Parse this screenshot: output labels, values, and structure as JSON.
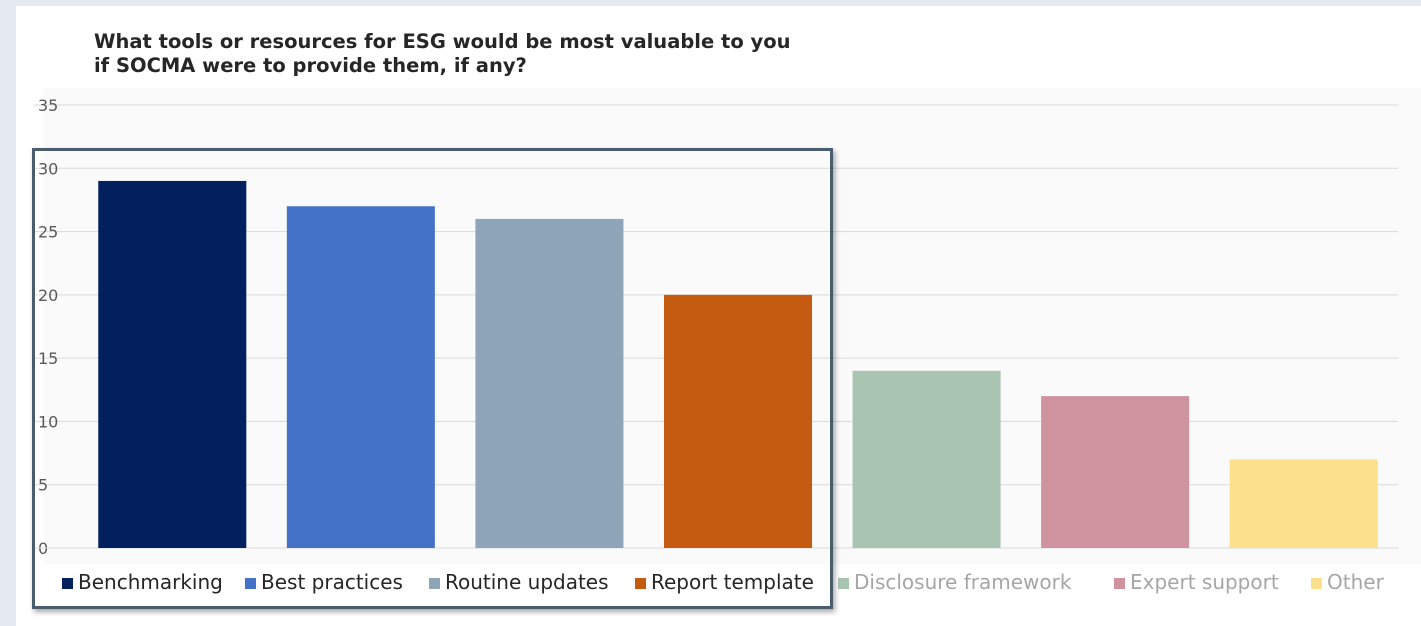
{
  "chart_data": {
    "type": "bar",
    "title": "What tools or resources for ESG would be most valuable to you\nif SOCMA were to provide them, if any?",
    "categories": [
      "Benchmarking",
      "Best practices",
      "Routine updates",
      "Report template",
      "Disclosure framework",
      "Expert support",
      "Other"
    ],
    "values": [
      29,
      27,
      26,
      20,
      14,
      12,
      7
    ],
    "colors": [
      "#02205e",
      "#4472c8",
      "#8ea5b8",
      "#c55a11",
      "#a9c4b1",
      "#cf929f",
      "#fce08b"
    ],
    "ylim": [
      0,
      35
    ],
    "yticks": [
      "0",
      "5",
      "10",
      "15",
      "20",
      "25",
      "30",
      "35"
    ],
    "grid": true,
    "legend": "bottom",
    "highlighted_categories": [
      "Benchmarking",
      "Best practices",
      "Routine updates",
      "Report template"
    ]
  }
}
